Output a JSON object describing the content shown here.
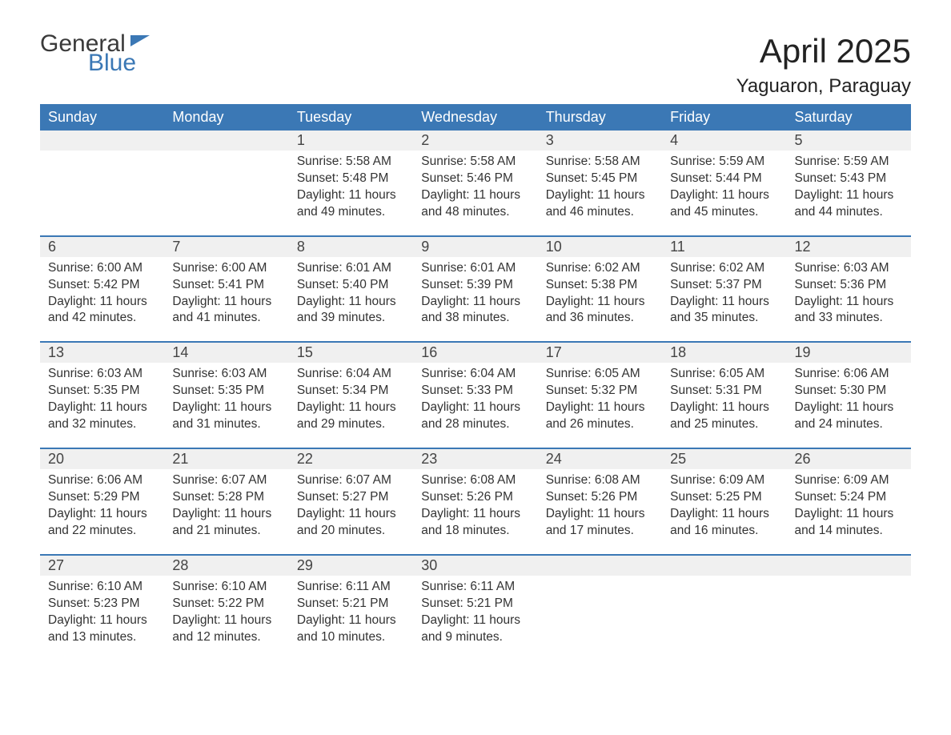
{
  "logo": {
    "top": "General",
    "bottom": "Blue"
  },
  "title": "April 2025",
  "location": "Yaguaron, Paraguay",
  "colors": {
    "header_bg": "#3b78b5",
    "header_text": "#ffffff",
    "daynum_bg": "#f0f0f0",
    "border": "#3b78b5",
    "text": "#333333",
    "logo_gray": "#3a3a3a",
    "logo_blue": "#3b78b5",
    "background": "#ffffff"
  },
  "typography": {
    "title_fontsize": 42,
    "location_fontsize": 24,
    "header_fontsize": 18,
    "daynum_fontsize": 18,
    "body_fontsize": 15.5
  },
  "weekdays": [
    "Sunday",
    "Monday",
    "Tuesday",
    "Wednesday",
    "Thursday",
    "Friday",
    "Saturday"
  ],
  "weeks": [
    [
      null,
      null,
      {
        "day": "1",
        "sunrise": "5:58 AM",
        "sunset": "5:48 PM",
        "daylight": "11 hours and 49 minutes."
      },
      {
        "day": "2",
        "sunrise": "5:58 AM",
        "sunset": "5:46 PM",
        "daylight": "11 hours and 48 minutes."
      },
      {
        "day": "3",
        "sunrise": "5:58 AM",
        "sunset": "5:45 PM",
        "daylight": "11 hours and 46 minutes."
      },
      {
        "day": "4",
        "sunrise": "5:59 AM",
        "sunset": "5:44 PM",
        "daylight": "11 hours and 45 minutes."
      },
      {
        "day": "5",
        "sunrise": "5:59 AM",
        "sunset": "5:43 PM",
        "daylight": "11 hours and 44 minutes."
      }
    ],
    [
      {
        "day": "6",
        "sunrise": "6:00 AM",
        "sunset": "5:42 PM",
        "daylight": "11 hours and 42 minutes."
      },
      {
        "day": "7",
        "sunrise": "6:00 AM",
        "sunset": "5:41 PM",
        "daylight": "11 hours and 41 minutes."
      },
      {
        "day": "8",
        "sunrise": "6:01 AM",
        "sunset": "5:40 PM",
        "daylight": "11 hours and 39 minutes."
      },
      {
        "day": "9",
        "sunrise": "6:01 AM",
        "sunset": "5:39 PM",
        "daylight": "11 hours and 38 minutes."
      },
      {
        "day": "10",
        "sunrise": "6:02 AM",
        "sunset": "5:38 PM",
        "daylight": "11 hours and 36 minutes."
      },
      {
        "day": "11",
        "sunrise": "6:02 AM",
        "sunset": "5:37 PM",
        "daylight": "11 hours and 35 minutes."
      },
      {
        "day": "12",
        "sunrise": "6:03 AM",
        "sunset": "5:36 PM",
        "daylight": "11 hours and 33 minutes."
      }
    ],
    [
      {
        "day": "13",
        "sunrise": "6:03 AM",
        "sunset": "5:35 PM",
        "daylight": "11 hours and 32 minutes."
      },
      {
        "day": "14",
        "sunrise": "6:03 AM",
        "sunset": "5:35 PM",
        "daylight": "11 hours and 31 minutes."
      },
      {
        "day": "15",
        "sunrise": "6:04 AM",
        "sunset": "5:34 PM",
        "daylight": "11 hours and 29 minutes."
      },
      {
        "day": "16",
        "sunrise": "6:04 AM",
        "sunset": "5:33 PM",
        "daylight": "11 hours and 28 minutes."
      },
      {
        "day": "17",
        "sunrise": "6:05 AM",
        "sunset": "5:32 PM",
        "daylight": "11 hours and 26 minutes."
      },
      {
        "day": "18",
        "sunrise": "6:05 AM",
        "sunset": "5:31 PM",
        "daylight": "11 hours and 25 minutes."
      },
      {
        "day": "19",
        "sunrise": "6:06 AM",
        "sunset": "5:30 PM",
        "daylight": "11 hours and 24 minutes."
      }
    ],
    [
      {
        "day": "20",
        "sunrise": "6:06 AM",
        "sunset": "5:29 PM",
        "daylight": "11 hours and 22 minutes."
      },
      {
        "day": "21",
        "sunrise": "6:07 AM",
        "sunset": "5:28 PM",
        "daylight": "11 hours and 21 minutes."
      },
      {
        "day": "22",
        "sunrise": "6:07 AM",
        "sunset": "5:27 PM",
        "daylight": "11 hours and 20 minutes."
      },
      {
        "day": "23",
        "sunrise": "6:08 AM",
        "sunset": "5:26 PM",
        "daylight": "11 hours and 18 minutes."
      },
      {
        "day": "24",
        "sunrise": "6:08 AM",
        "sunset": "5:26 PM",
        "daylight": "11 hours and 17 minutes."
      },
      {
        "day": "25",
        "sunrise": "6:09 AM",
        "sunset": "5:25 PM",
        "daylight": "11 hours and 16 minutes."
      },
      {
        "day": "26",
        "sunrise": "6:09 AM",
        "sunset": "5:24 PM",
        "daylight": "11 hours and 14 minutes."
      }
    ],
    [
      {
        "day": "27",
        "sunrise": "6:10 AM",
        "sunset": "5:23 PM",
        "daylight": "11 hours and 13 minutes."
      },
      {
        "day": "28",
        "sunrise": "6:10 AM",
        "sunset": "5:22 PM",
        "daylight": "11 hours and 12 minutes."
      },
      {
        "day": "29",
        "sunrise": "6:11 AM",
        "sunset": "5:21 PM",
        "daylight": "11 hours and 10 minutes."
      },
      {
        "day": "30",
        "sunrise": "6:11 AM",
        "sunset": "5:21 PM",
        "daylight": "11 hours and 9 minutes."
      },
      null,
      null,
      null
    ]
  ],
  "labels": {
    "sunrise_prefix": "Sunrise: ",
    "sunset_prefix": "Sunset: ",
    "daylight_prefix": "Daylight: "
  }
}
